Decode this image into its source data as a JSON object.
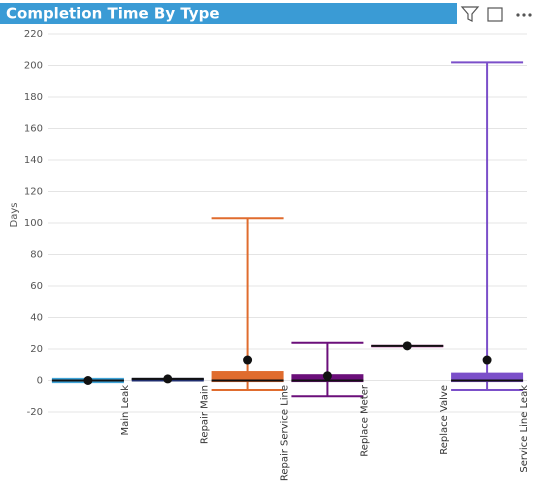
{
  "chart_data": {
    "type": "box",
    "title": "Completion Time By Type",
    "y_label": "Days",
    "categories": [
      "Main Leak",
      "Repair Main",
      "Repair Service Line",
      "Replace Meter",
      "Replace Valve",
      "Service Line Leak"
    ],
    "colors": [
      "#41a4d8",
      "#1f2d6e",
      "#e06c2e",
      "#6b0f7a",
      "#c04fa8",
      "#7b4fc9"
    ],
    "min": [
      -1,
      0,
      -6,
      -10,
      22,
      -6
    ],
    "q1": [
      -1,
      0,
      -1,
      -1,
      22,
      -1
    ],
    "median": [
      0,
      1,
      0,
      0,
      22,
      0
    ],
    "q3": [
      1,
      1,
      6,
      4,
      22,
      5
    ],
    "max": [
      1,
      1,
      103,
      24,
      22,
      202
    ],
    "mean": [
      0,
      1,
      13,
      3,
      22,
      13
    ],
    "ylim": [
      -20,
      220
    ],
    "yticks": [
      -20,
      0,
      20,
      40,
      60,
      80,
      100,
      120,
      140,
      160,
      180,
      200,
      220
    ],
    "grid": true
  }
}
